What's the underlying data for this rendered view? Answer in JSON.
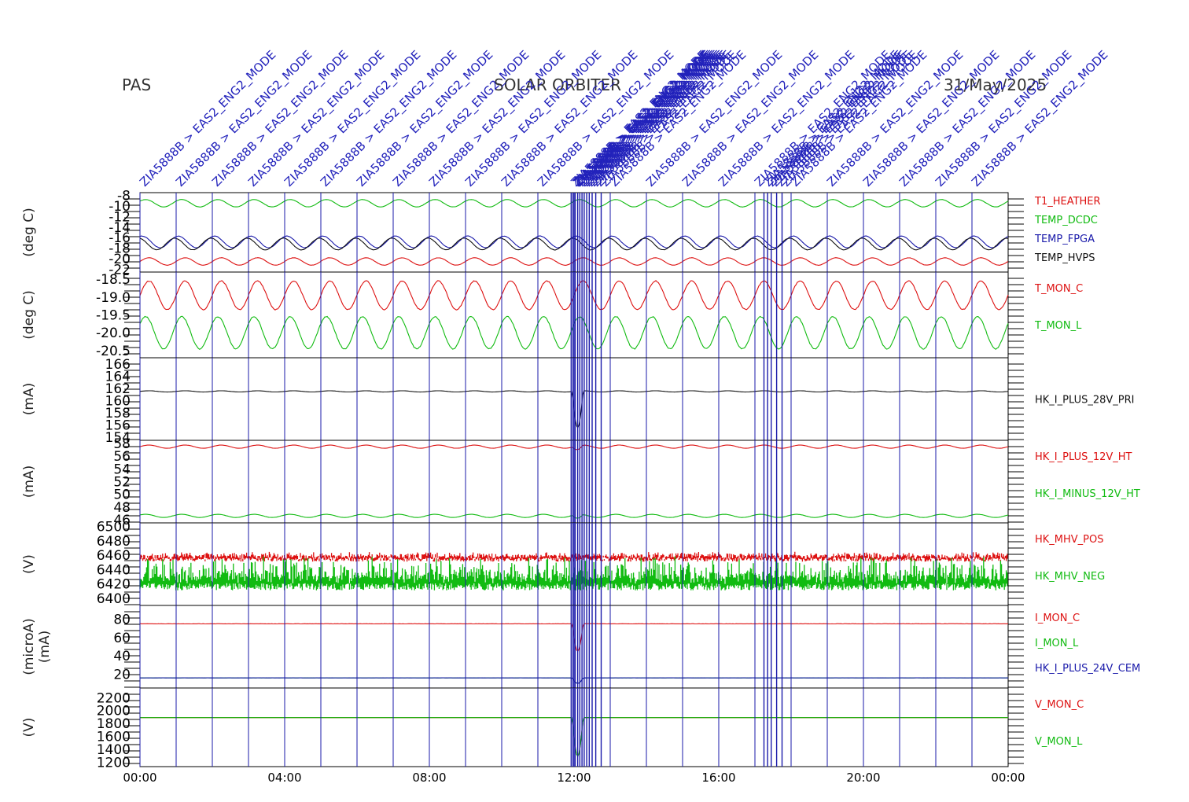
{
  "header": {
    "left": "PAS",
    "center": "SOLAR ORBITER",
    "right": "31/May/2025"
  },
  "colors": {
    "red": "#dd1111",
    "green": "#11bb11",
    "blue": "#1a1aaa",
    "black": "#111111",
    "event_line": "#1a1aaa",
    "event_label": "#2222bb"
  },
  "time_axis": {
    "range_hours": [
      0,
      24
    ],
    "tick_labels": [
      "00:00",
      "04:00",
      "08:00",
      "12:00",
      "16:00",
      "20:00",
      "00:00"
    ]
  },
  "event_markers": {
    "label_text": "ZIA5888B > EAS2_ENG2_MODE",
    "times_hours": [
      0,
      1,
      2,
      3,
      4,
      5,
      6,
      7,
      8,
      9,
      10,
      11,
      12,
      13,
      14,
      15,
      16,
      17,
      18,
      19,
      20,
      21,
      22,
      23
    ],
    "cluster_times_hours": [
      11.92,
      11.97,
      12.03,
      12.1,
      12.16,
      12.22,
      12.28,
      12.35,
      12.42,
      12.5,
      12.6,
      12.75,
      17.25,
      17.35,
      17.45,
      17.6,
      17.75
    ]
  },
  "chart_data": [
    {
      "type": "line",
      "ylabel": "(deg C)",
      "ylim": [
        -22.5,
        -7.5
      ],
      "ytick_labels": [
        "-8",
        "-10",
        "-12",
        "-14",
        "-16",
        "-18",
        "-20",
        "-22"
      ],
      "ytick_values": [
        -8,
        -10,
        -12,
        -14,
        -16,
        -18,
        -20,
        -22
      ],
      "series": [
        {
          "name": "T1_HEATHER",
          "color": "red",
          "center": -20.5,
          "amplitude": 0.7,
          "periods": 24
        },
        {
          "name": "TEMP_DCDC",
          "color": "green",
          "center": -9.5,
          "amplitude": 0.7,
          "periods": 24
        },
        {
          "name": "TEMP_FPGA",
          "color": "blue",
          "center": -16.8,
          "amplitude": 1.1,
          "periods": 24
        },
        {
          "name": "TEMP_HVPS",
          "color": "black",
          "center": -17.2,
          "amplitude": 1.1,
          "periods": 24
        }
      ]
    },
    {
      "type": "line",
      "ylabel": "(deg C)",
      "ylim": [
        -20.7,
        -18.3
      ],
      "ytick_labels": [
        "-18.5",
        "-19.0",
        "-19.5",
        "-20.0",
        "-20.5"
      ],
      "ytick_values": [
        -18.5,
        -19.0,
        -19.5,
        -20.0,
        -20.5
      ],
      "series": [
        {
          "name": "T_MON_C",
          "color": "red",
          "center": -18.95,
          "amplitude": 0.4,
          "periods": 24
        },
        {
          "name": "T_MON_L",
          "color": "green",
          "center": -20.0,
          "amplitude": 0.45,
          "periods": 24
        }
      ]
    },
    {
      "type": "line",
      "ylabel": "(mA)",
      "ylim": [
        153.5,
        167
      ],
      "ytick_labels": [
        "166",
        "164",
        "162",
        "160",
        "158",
        "156",
        "154"
      ],
      "ytick_values": [
        166,
        164,
        162,
        160,
        158,
        156,
        154
      ],
      "series": [
        {
          "name": "HK_I_PLUS_28V_PRI",
          "color": "black",
          "center": 161.5,
          "amplitude": 0.1,
          "periods": 24
        }
      ]
    },
    {
      "type": "line",
      "ylabel": "(mA)",
      "ylim": [
        45.5,
        58.5
      ],
      "ytick_labels": [
        "58",
        "56",
        "54",
        "52",
        "50",
        "48",
        "46"
      ],
      "ytick_values": [
        58,
        56,
        54,
        52,
        50,
        48,
        46
      ],
      "series": [
        {
          "name": "HK_I_PLUS_12V_HT",
          "color": "red",
          "center": 57.5,
          "amplitude": 0.25,
          "periods": 24
        },
        {
          "name": "HK_I_MINUS_12V_HT",
          "color": "green",
          "center": 46.6,
          "amplitude": 0.25,
          "periods": 24
        }
      ]
    },
    {
      "type": "area",
      "ylabel": "(V)",
      "ylim": [
        6390,
        6505
      ],
      "ytick_labels": [
        "6500",
        "6480",
        "6460",
        "6440",
        "6420",
        "6400"
      ],
      "ytick_values": [
        6500,
        6480,
        6460,
        6440,
        6420,
        6400
      ],
      "series": [
        {
          "name": "HK_MHV_POS",
          "color": "red",
          "center": 6456,
          "amplitude": 6,
          "periods": 0
        },
        {
          "name": "HK_MHV_NEG",
          "color": "green",
          "center": 6424,
          "amplitude": 10,
          "periods": 0
        }
      ]
    },
    {
      "type": "line",
      "ylabel": "(microA)\n(mA)",
      "ylim": [
        5,
        95
      ],
      "ytick_labels": [
        "80",
        "60",
        "40",
        "20"
      ],
      "ytick_values": [
        80,
        60,
        40,
        20
      ],
      "series": [
        {
          "name": "I_MON_C",
          "color": "red",
          "center": 75,
          "amplitude": 0.3,
          "periods": 0
        },
        {
          "name": "I_MON_L",
          "color": "green",
          "center": 16,
          "amplitude": 0.1,
          "periods": 0
        },
        {
          "name": "HK_I_PLUS_24V_CEM",
          "color": "blue",
          "center": 16,
          "amplitude": 0.1,
          "periods": 0
        }
      ]
    },
    {
      "type": "line",
      "ylabel": "(V)",
      "ylim": [
        1130,
        2350
      ],
      "ytick_labels": [
        "2200",
        "2000",
        "1800",
        "1600",
        "1400",
        "1200"
      ],
      "ytick_values": [
        2200,
        2000,
        1800,
        1600,
        1400,
        1200
      ],
      "series": [
        {
          "name": "V_MON_C",
          "color": "red",
          "center": 1890,
          "amplitude": 0,
          "periods": 0
        },
        {
          "name": "V_MON_L",
          "color": "green",
          "center": 1890,
          "amplitude": 0,
          "periods": 0
        }
      ]
    }
  ]
}
